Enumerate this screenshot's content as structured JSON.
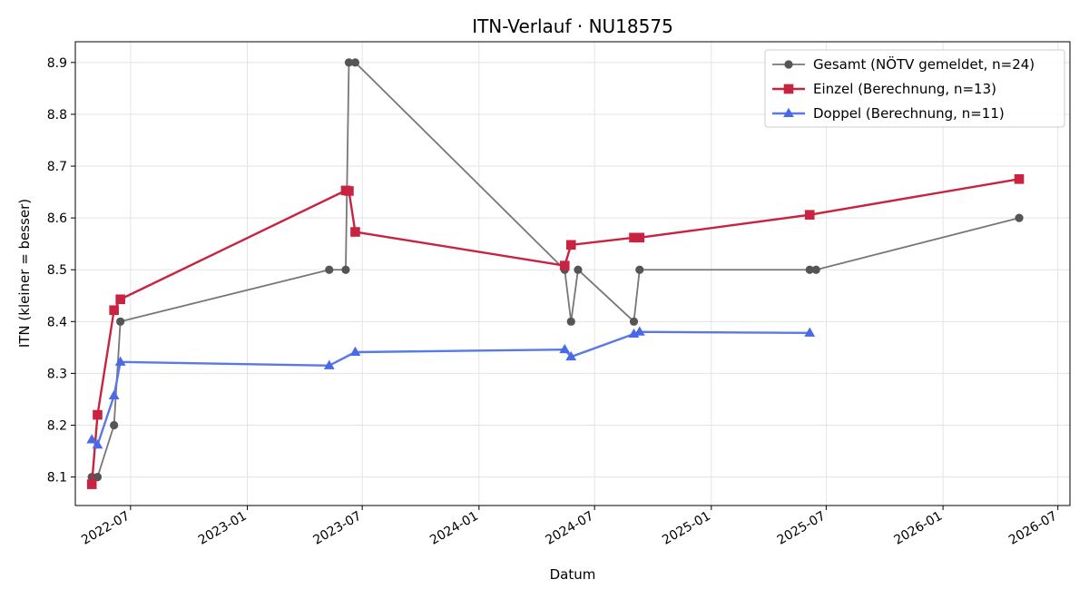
{
  "chart_data": {
    "type": "line",
    "title": "ITN-Verlauf · NU18575",
    "xlabel": "Datum",
    "ylabel": "ITN  (kleiner = besser)",
    "x_axis": "date",
    "xlim": [
      "2022-04-05",
      "2026-07-20"
    ],
    "ylim": [
      8.045,
      8.94
    ],
    "xticks": [
      "2022-07",
      "2023-01",
      "2023-07",
      "2024-01",
      "2024-07",
      "2025-01",
      "2025-07",
      "2026-01",
      "2026-07"
    ],
    "yticks": [
      "8.1",
      "8.2",
      "8.3",
      "8.4",
      "8.5",
      "8.6",
      "8.7",
      "8.8",
      "8.9"
    ],
    "grid": true,
    "legend_position": "top-right",
    "series": [
      {
        "name": "Gesamt (NÖTV gemeldet, n=24)",
        "color": "#777777",
        "marker_color": "#555555",
        "marker": "circle",
        "points": [
          {
            "x": "2022-05-01",
            "y": 8.1
          },
          {
            "x": "2022-05-10",
            "y": 8.1
          },
          {
            "x": "2022-06-05",
            "y": 8.2
          },
          {
            "x": "2022-06-15",
            "y": 8.4
          },
          {
            "x": "2023-05-10",
            "y": 8.5
          },
          {
            "x": "2023-06-05",
            "y": 8.5
          },
          {
            "x": "2023-06-10",
            "y": 8.9
          },
          {
            "x": "2023-06-20",
            "y": 8.9
          },
          {
            "x": "2024-05-15",
            "y": 8.5
          },
          {
            "x": "2024-05-25",
            "y": 8.4
          },
          {
            "x": "2024-06-05",
            "y": 8.5
          },
          {
            "x": "2024-09-01",
            "y": 8.4
          },
          {
            "x": "2024-09-10",
            "y": 8.5
          },
          {
            "x": "2025-06-05",
            "y": 8.5
          },
          {
            "x": "2025-06-15",
            "y": 8.5
          },
          {
            "x": "2026-05-01",
            "y": 8.6
          }
        ]
      },
      {
        "name": "Einzel (Berechnung, n=13)",
        "color": "#c82340",
        "marker_color": "#c82340",
        "marker": "square",
        "points": [
          {
            "x": "2022-05-01",
            "y": 8.086
          },
          {
            "x": "2022-05-10",
            "y": 8.22
          },
          {
            "x": "2022-06-05",
            "y": 8.422
          },
          {
            "x": "2022-06-15",
            "y": 8.443
          },
          {
            "x": "2023-06-05",
            "y": 8.653
          },
          {
            "x": "2023-06-10",
            "y": 8.652
          },
          {
            "x": "2023-06-20",
            "y": 8.573
          },
          {
            "x": "2024-05-15",
            "y": 8.508
          },
          {
            "x": "2024-05-25",
            "y": 8.548
          },
          {
            "x": "2024-09-01",
            "y": 8.562
          },
          {
            "x": "2024-09-10",
            "y": 8.562
          },
          {
            "x": "2025-06-05",
            "y": 8.606
          },
          {
            "x": "2026-05-01",
            "y": 8.675
          }
        ]
      },
      {
        "name": "Doppel (Berechnung, n=11)",
        "color": "#5a78e6",
        "marker_color": "#4a69e6",
        "marker": "triangle",
        "points": [
          {
            "x": "2022-05-01",
            "y": 8.172
          },
          {
            "x": "2022-05-10",
            "y": 8.162
          },
          {
            "x": "2022-06-05",
            "y": 8.257
          },
          {
            "x": "2022-06-15",
            "y": 8.322
          },
          {
            "x": "2023-05-10",
            "y": 8.315
          },
          {
            "x": "2023-06-20",
            "y": 8.341
          },
          {
            "x": "2024-05-15",
            "y": 8.346
          },
          {
            "x": "2024-05-25",
            "y": 8.332
          },
          {
            "x": "2024-09-01",
            "y": 8.376
          },
          {
            "x": "2024-09-10",
            "y": 8.38
          },
          {
            "x": "2025-06-05",
            "y": 8.378
          }
        ]
      }
    ]
  }
}
